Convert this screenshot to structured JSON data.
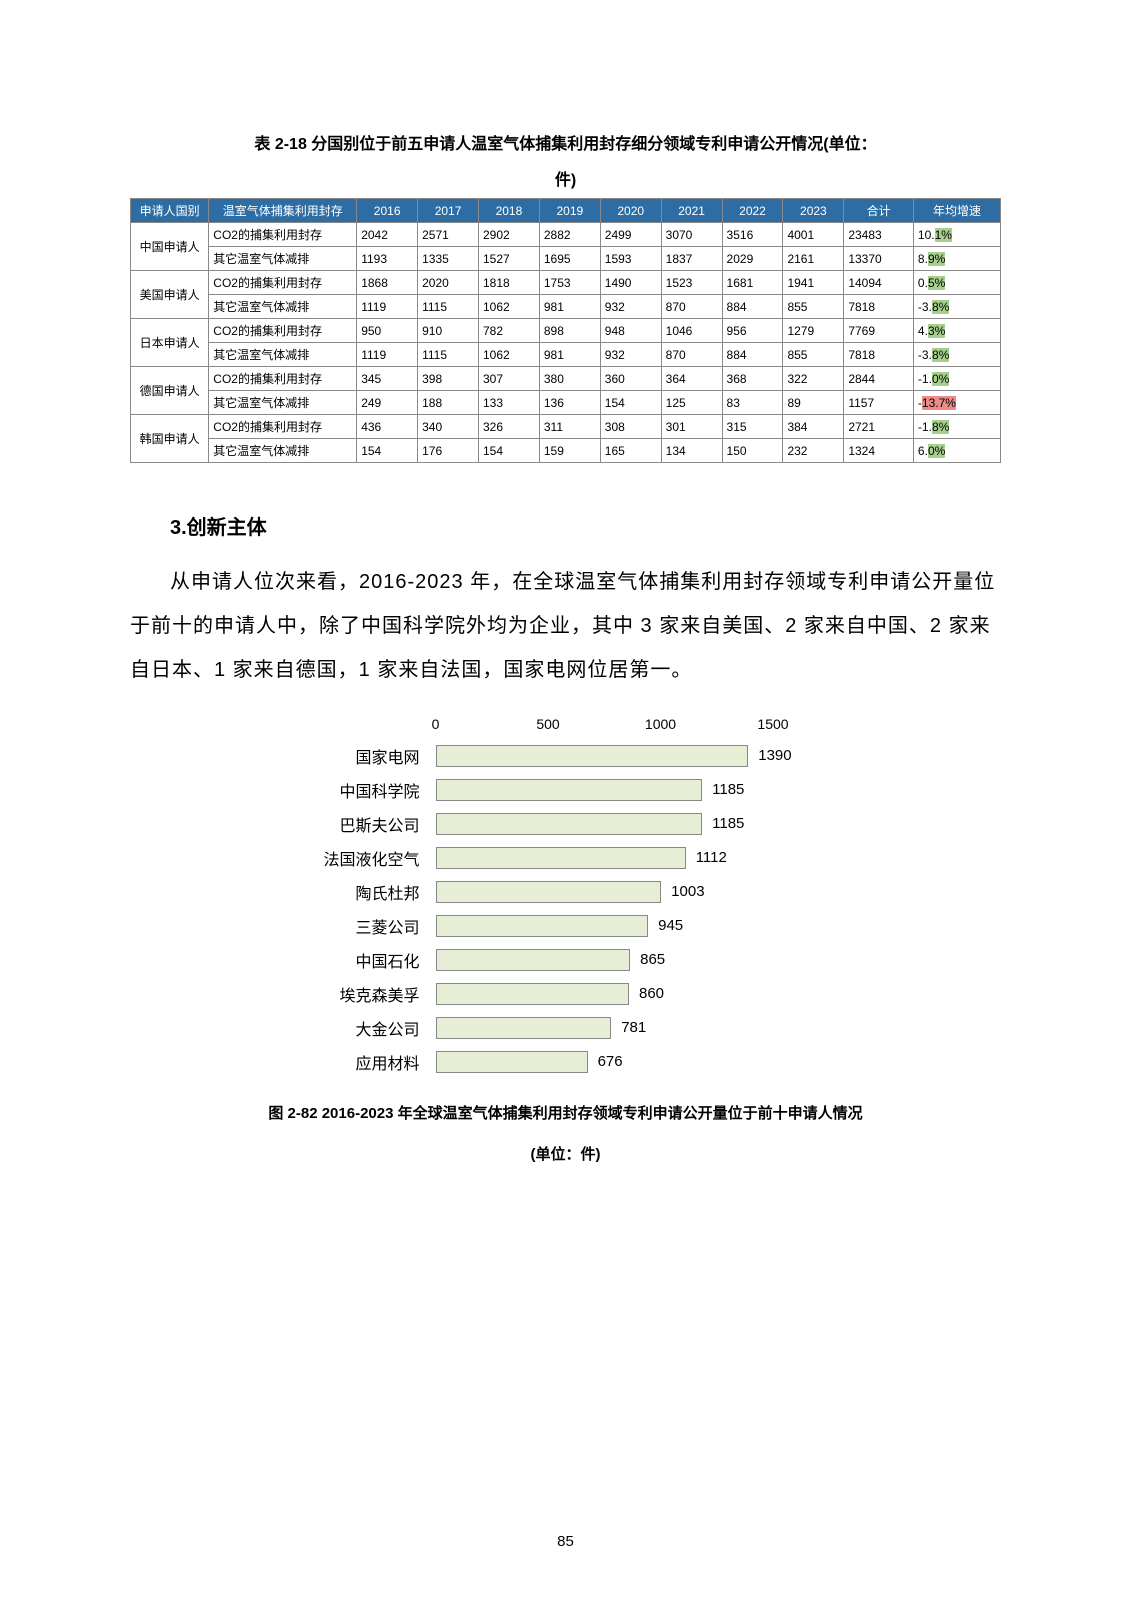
{
  "table_caption": "表 2-18 分国别位于前五申请人温室气体捕集利用封存细分领域专利申请公开情况(单位：",
  "table_caption_unit": "件)",
  "table": {
    "headers": [
      "申请人国别",
      "温室气体捕集利用封存",
      "2016",
      "2017",
      "2018",
      "2019",
      "2020",
      "2021",
      "2022",
      "2023",
      "合计",
      "年均增速"
    ],
    "col_widths": [
      "9%",
      "17%",
      "7%",
      "7%",
      "7%",
      "7%",
      "7%",
      "7%",
      "7%",
      "7%",
      "8%",
      "10%"
    ],
    "header_bg": "#2e6da4",
    "header_fg": "#ffffff",
    "countries": [
      {
        "name": "中国申请人",
        "rows": [
          {
            "cat": "CO2的捕集利用封存",
            "values": [
              2042,
              2571,
              2902,
              2882,
              2499,
              3070,
              3516,
              4001,
              23483
            ],
            "growth": "10.1%",
            "hl": "g"
          },
          {
            "cat": "其它温室气体减排",
            "values": [
              1193,
              1335,
              1527,
              1695,
              1593,
              1837,
              2029,
              2161,
              13370
            ],
            "growth": "8.9%",
            "hl": "g"
          }
        ]
      },
      {
        "name": "美国申请人",
        "rows": [
          {
            "cat": "CO2的捕集利用封存",
            "values": [
              1868,
              2020,
              1818,
              1753,
              1490,
              1523,
              1681,
              1941,
              14094
            ],
            "growth": "0.5%",
            "hl": "g"
          },
          {
            "cat": "其它温室气体减排",
            "values": [
              1119,
              1115,
              1062,
              981,
              932,
              870,
              884,
              855,
              7818
            ],
            "growth": "-3.8%",
            "hl": "g"
          }
        ]
      },
      {
        "name": "日本申请人",
        "rows": [
          {
            "cat": "CO2的捕集利用封存",
            "values": [
              950,
              910,
              782,
              898,
              948,
              1046,
              956,
              1279,
              7769
            ],
            "growth": "4.3%",
            "hl": "g"
          },
          {
            "cat": "其它温室气体减排",
            "values": [
              1119,
              1115,
              1062,
              981,
              932,
              870,
              884,
              855,
              7818
            ],
            "growth": "-3.8%",
            "hl": "g"
          }
        ]
      },
      {
        "name": "德国申请人",
        "rows": [
          {
            "cat": "CO2的捕集利用封存",
            "values": [
              345,
              398,
              307,
              380,
              360,
              364,
              368,
              322,
              2844
            ],
            "growth": "-1.0%",
            "hl": "g"
          },
          {
            "cat": "其它温室气体减排",
            "values": [
              249,
              188,
              133,
              136,
              154,
              125,
              83,
              89,
              1157
            ],
            "growth": "-13.7%",
            "hl": "r"
          }
        ]
      },
      {
        "name": "韩国申请人",
        "rows": [
          {
            "cat": "CO2的捕集利用封存",
            "values": [
              436,
              340,
              326,
              311,
              308,
              301,
              315,
              384,
              2721
            ],
            "growth": "-1.8%",
            "hl": "g"
          },
          {
            "cat": "其它温室气体减排",
            "values": [
              154,
              176,
              154,
              159,
              165,
              134,
              150,
              232,
              1324
            ],
            "growth": "6.0%",
            "hl": "g"
          }
        ]
      }
    ]
  },
  "section_heading": "3.创新主体",
  "body_text": "从申请人位次来看，2016-2023 年，在全球温室气体捕集利用封存领域专利申请公开量位于前十的申请人中，除了中国科学院外均为企业，其中 3 家来自美国、2 家来自中国、2 家来自日本、1 家来自德国，1 家来自法国，国家电网位居第一。",
  "chart": {
    "type": "horizontal_bar",
    "xmax": 1600,
    "xticks": [
      0,
      500,
      1000,
      1500
    ],
    "bar_fill": "#e6eed5",
    "bar_border": "#888888",
    "bg": "#ffffff",
    "bars": [
      {
        "label": "国家电网",
        "value": 1390
      },
      {
        "label": "中国科学院",
        "value": 1185
      },
      {
        "label": "巴斯夫公司",
        "value": 1185
      },
      {
        "label": "法国液化空气",
        "value": 1112
      },
      {
        "label": "陶氏杜邦",
        "value": 1003
      },
      {
        "label": "三菱公司",
        "value": 945
      },
      {
        "label": "中国石化",
        "value": 865
      },
      {
        "label": "埃克森美孚",
        "value": 860
      },
      {
        "label": "大金公司",
        "value": 781
      },
      {
        "label": "应用材料",
        "value": 676
      }
    ]
  },
  "fig_caption": "图 2-82 2016-2023 年全球温室气体捕集利用封存领域专利申请公开量位于前十申请人情况",
  "fig_unit": "(单位：件)",
  "page_number": "85"
}
